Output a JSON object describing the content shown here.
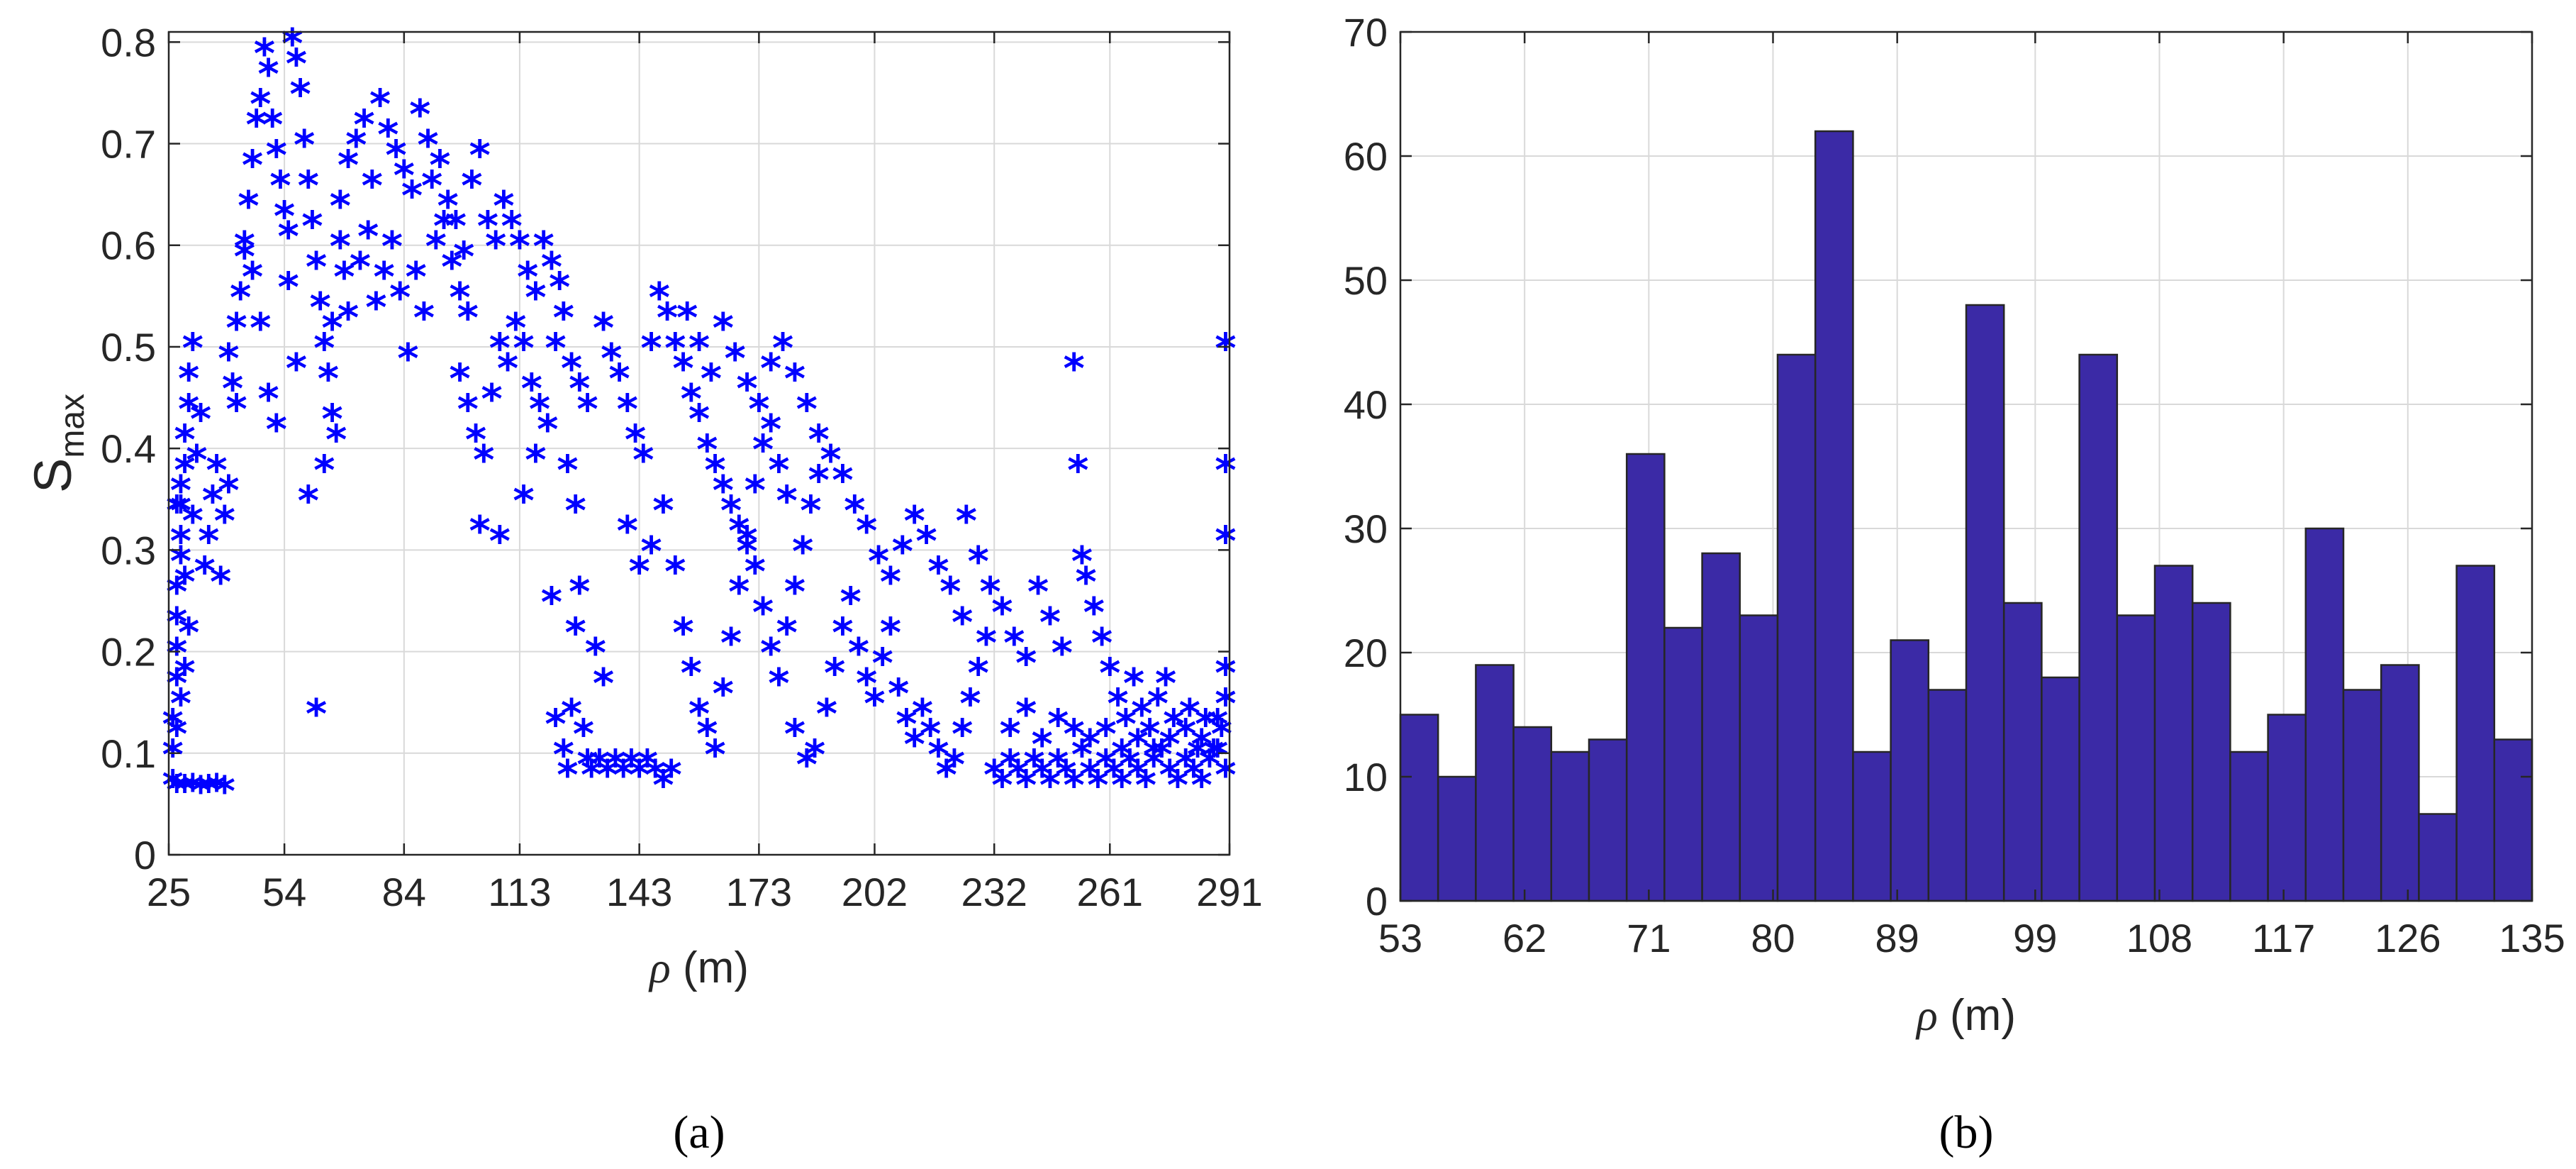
{
  "chart_data": [
    {
      "type": "scatter",
      "panel_label": "(a)",
      "xlabel_symbol": "ρ",
      "xlabel_unit": " (m)",
      "ylabel_main": "S",
      "ylabel_sub": "max",
      "xlim": [
        25,
        291
      ],
      "ylim": [
        0,
        0.81
      ],
      "x_ticks": [
        25,
        54,
        84,
        113,
        143,
        173,
        202,
        232,
        261,
        291
      ],
      "x_tick_labels": [
        "25",
        "54",
        "84",
        "113",
        "143",
        "173",
        "202",
        "232",
        "261",
        "291"
      ],
      "y_ticks": [
        0,
        0.1,
        0.2,
        0.3,
        0.4,
        0.5,
        0.6,
        0.7,
        0.8
      ],
      "y_tick_labels": [
        "0",
        "0.1",
        "0.2",
        "0.3",
        "0.4",
        "0.5",
        "0.6",
        "0.7",
        "0.8"
      ],
      "grid": true,
      "marker": "*",
      "marker_color": "#0000ff",
      "points": [
        [
          26,
          0.07
        ],
        [
          26,
          0.1
        ],
        [
          26,
          0.13
        ],
        [
          27,
          0.17
        ],
        [
          27,
          0.2
        ],
        [
          27,
          0.23
        ],
        [
          27,
          0.26
        ],
        [
          28,
          0.29
        ],
        [
          28,
          0.31
        ],
        [
          28,
          0.34
        ],
        [
          28,
          0.36
        ],
        [
          29,
          0.38
        ],
        [
          29,
          0.41
        ],
        [
          30,
          0.44
        ],
        [
          30,
          0.47
        ],
        [
          31,
          0.5
        ],
        [
          27,
          0.34
        ],
        [
          29,
          0.27
        ],
        [
          30,
          0.22
        ],
        [
          29,
          0.18
        ],
        [
          28,
          0.15
        ],
        [
          27,
          0.12
        ],
        [
          31,
          0.33
        ],
        [
          32,
          0.39
        ],
        [
          33,
          0.43
        ],
        [
          27,
          0.065
        ],
        [
          29,
          0.065
        ],
        [
          31,
          0.066
        ],
        [
          33,
          0.064
        ],
        [
          35,
          0.065
        ],
        [
          37,
          0.066
        ],
        [
          39,
          0.064
        ],
        [
          34,
          0.28
        ],
        [
          35,
          0.31
        ],
        [
          36,
          0.35
        ],
        [
          37,
          0.38
        ],
        [
          38,
          0.27
        ],
        [
          39,
          0.33
        ],
        [
          40,
          0.36
        ],
        [
          41,
          0.46
        ],
        [
          42,
          0.52
        ],
        [
          43,
          0.55
        ],
        [
          44,
          0.59
        ],
        [
          45,
          0.64
        ],
        [
          46,
          0.68
        ],
        [
          47,
          0.72
        ],
        [
          48,
          0.74
        ],
        [
          49,
          0.79
        ],
        [
          50,
          0.77
        ],
        [
          51,
          0.72
        ],
        [
          52,
          0.69
        ],
        [
          53,
          0.66
        ],
        [
          54,
          0.63
        ],
        [
          55,
          0.61
        ],
        [
          56,
          0.8
        ],
        [
          57,
          0.78
        ],
        [
          58,
          0.75
        ],
        [
          59,
          0.7
        ],
        [
          60,
          0.66
        ],
        [
          61,
          0.62
        ],
        [
          62,
          0.58
        ],
        [
          63,
          0.54
        ],
        [
          64,
          0.5
        ],
        [
          65,
          0.47
        ],
        [
          66,
          0.43
        ],
        [
          67,
          0.41
        ],
        [
          68,
          0.6
        ],
        [
          69,
          0.57
        ],
        [
          70,
          0.53
        ],
        [
          40,
          0.49
        ],
        [
          42,
          0.44
        ],
        [
          44,
          0.6
        ],
        [
          46,
          0.57
        ],
        [
          48,
          0.52
        ],
        [
          50,
          0.45
        ],
        [
          52,
          0.42
        ],
        [
          55,
          0.56
        ],
        [
          57,
          0.48
        ],
        [
          60,
          0.35
        ],
        [
          62,
          0.14
        ],
        [
          64,
          0.38
        ],
        [
          66,
          0.52
        ],
        [
          68,
          0.64
        ],
        [
          70,
          0.68
        ],
        [
          72,
          0.7
        ],
        [
          74,
          0.72
        ],
        [
          76,
          0.66
        ],
        [
          78,
          0.74
        ],
        [
          80,
          0.71
        ],
        [
          82,
          0.69
        ],
        [
          84,
          0.67
        ],
        [
          86,
          0.65
        ],
        [
          88,
          0.73
        ],
        [
          90,
          0.7
        ],
        [
          92,
          0.6
        ],
        [
          94,
          0.62
        ],
        [
          96,
          0.58
        ],
        [
          98,
          0.55
        ],
        [
          100,
          0.53
        ],
        [
          73,
          0.58
        ],
        [
          75,
          0.61
        ],
        [
          77,
          0.54
        ],
        [
          79,
          0.57
        ],
        [
          81,
          0.6
        ],
        [
          83,
          0.55
        ],
        [
          85,
          0.49
        ],
        [
          87,
          0.57
        ],
        [
          89,
          0.53
        ],
        [
          91,
          0.66
        ],
        [
          93,
          0.68
        ],
        [
          95,
          0.64
        ],
        [
          97,
          0.62
        ],
        [
          99,
          0.59
        ],
        [
          101,
          0.66
        ],
        [
          103,
          0.69
        ],
        [
          105,
          0.62
        ],
        [
          107,
          0.6
        ],
        [
          109,
          0.64
        ],
        [
          111,
          0.62
        ],
        [
          113,
          0.6
        ],
        [
          115,
          0.57
        ],
        [
          117,
          0.55
        ],
        [
          119,
          0.6
        ],
        [
          121,
          0.58
        ],
        [
          123,
          0.56
        ],
        [
          98,
          0.47
        ],
        [
          100,
          0.44
        ],
        [
          102,
          0.41
        ],
        [
          104,
          0.39
        ],
        [
          106,
          0.45
        ],
        [
          108,
          0.5
        ],
        [
          110,
          0.48
        ],
        [
          112,
          0.52
        ],
        [
          114,
          0.5
        ],
        [
          116,
          0.46
        ],
        [
          118,
          0.44
        ],
        [
          103,
          0.32
        ],
        [
          108,
          0.31
        ],
        [
          114,
          0.35
        ],
        [
          117,
          0.39
        ],
        [
          120,
          0.42
        ],
        [
          122,
          0.5
        ],
        [
          124,
          0.53
        ],
        [
          126,
          0.48
        ],
        [
          128,
          0.46
        ],
        [
          130,
          0.44
        ],
        [
          125,
          0.38
        ],
        [
          127,
          0.34
        ],
        [
          121,
          0.25
        ],
        [
          122,
          0.13
        ],
        [
          124,
          0.1
        ],
        [
          125,
          0.08
        ],
        [
          126,
          0.14
        ],
        [
          127,
          0.22
        ],
        [
          128,
          0.26
        ],
        [
          129,
          0.12
        ],
        [
          130,
          0.09
        ],
        [
          131,
          0.08
        ],
        [
          133,
          0.09
        ],
        [
          135,
          0.08
        ],
        [
          137,
          0.09
        ],
        [
          139,
          0.08
        ],
        [
          141,
          0.09
        ],
        [
          143,
          0.08
        ],
        [
          145,
          0.09
        ],
        [
          147,
          0.08
        ],
        [
          149,
          0.07
        ],
        [
          151,
          0.08
        ],
        [
          132,
          0.2
        ],
        [
          134,
          0.17
        ],
        [
          134,
          0.52
        ],
        [
          136,
          0.49
        ],
        [
          138,
          0.47
        ],
        [
          140,
          0.44
        ],
        [
          142,
          0.41
        ],
        [
          144,
          0.39
        ],
        [
          146,
          0.5
        ],
        [
          148,
          0.55
        ],
        [
          150,
          0.53
        ],
        [
          152,
          0.5
        ],
        [
          154,
          0.48
        ],
        [
          156,
          0.45
        ],
        [
          158,
          0.43
        ],
        [
          160,
          0.4
        ],
        [
          162,
          0.38
        ],
        [
          164,
          0.36
        ],
        [
          166,
          0.34
        ],
        [
          168,
          0.32
        ],
        [
          170,
          0.3
        ],
        [
          172,
          0.36
        ],
        [
          174,
          0.4
        ],
        [
          176,
          0.42
        ],
        [
          178,
          0.38
        ],
        [
          180,
          0.35
        ],
        [
          140,
          0.32
        ],
        [
          143,
          0.28
        ],
        [
          146,
          0.3
        ],
        [
          149,
          0.34
        ],
        [
          152,
          0.28
        ],
        [
          154,
          0.22
        ],
        [
          156,
          0.18
        ],
        [
          158,
          0.14
        ],
        [
          160,
          0.12
        ],
        [
          162,
          0.1
        ],
        [
          164,
          0.16
        ],
        [
          166,
          0.21
        ],
        [
          168,
          0.26
        ],
        [
          170,
          0.31
        ],
        [
          172,
          0.28
        ],
        [
          174,
          0.24
        ],
        [
          176,
          0.2
        ],
        [
          178,
          0.17
        ],
        [
          180,
          0.22
        ],
        [
          182,
          0.26
        ],
        [
          184,
          0.3
        ],
        [
          186,
          0.34
        ],
        [
          188,
          0.37
        ],
        [
          155,
          0.53
        ],
        [
          158,
          0.5
        ],
        [
          161,
          0.47
        ],
        [
          164,
          0.52
        ],
        [
          167,
          0.49
        ],
        [
          170,
          0.46
        ],
        [
          173,
          0.44
        ],
        [
          176,
          0.48
        ],
        [
          179,
          0.5
        ],
        [
          182,
          0.47
        ],
        [
          185,
          0.44
        ],
        [
          188,
          0.41
        ],
        [
          191,
          0.39
        ],
        [
          194,
          0.37
        ],
        [
          197,
          0.34
        ],
        [
          200,
          0.32
        ],
        [
          203,
          0.29
        ],
        [
          206,
          0.27
        ],
        [
          209,
          0.3
        ],
        [
          212,
          0.33
        ],
        [
          215,
          0.31
        ],
        [
          218,
          0.28
        ],
        [
          221,
          0.26
        ],
        [
          224,
          0.23
        ],
        [
          182,
          0.12
        ],
        [
          185,
          0.09
        ],
        [
          187,
          0.1
        ],
        [
          190,
          0.14
        ],
        [
          192,
          0.18
        ],
        [
          194,
          0.22
        ],
        [
          196,
          0.25
        ],
        [
          198,
          0.2
        ],
        [
          200,
          0.17
        ],
        [
          202,
          0.15
        ],
        [
          204,
          0.19
        ],
        [
          206,
          0.22
        ],
        [
          208,
          0.16
        ],
        [
          210,
          0.13
        ],
        [
          212,
          0.11
        ],
        [
          214,
          0.14
        ],
        [
          216,
          0.12
        ],
        [
          218,
          0.1
        ],
        [
          220,
          0.08
        ],
        [
          222,
          0.09
        ],
        [
          224,
          0.12
        ],
        [
          226,
          0.15
        ],
        [
          228,
          0.18
        ],
        [
          230,
          0.21
        ],
        [
          225,
          0.33
        ],
        [
          228,
          0.29
        ],
        [
          231,
          0.26
        ],
        [
          234,
          0.24
        ],
        [
          237,
          0.21
        ],
        [
          240,
          0.19
        ],
        [
          243,
          0.26
        ],
        [
          246,
          0.23
        ],
        [
          249,
          0.2
        ],
        [
          252,
          0.48
        ],
        [
          253,
          0.38
        ],
        [
          254,
          0.29
        ],
        [
          255,
          0.27
        ],
        [
          257,
          0.24
        ],
        [
          259,
          0.21
        ],
        [
          261,
          0.18
        ],
        [
          263,
          0.15
        ],
        [
          265,
          0.13
        ],
        [
          267,
          0.17
        ],
        [
          269,
          0.14
        ],
        [
          271,
          0.12
        ],
        [
          273,
          0.15
        ],
        [
          275,
          0.17
        ],
        [
          277,
          0.13
        ],
        [
          232,
          0.08
        ],
        [
          234,
          0.07
        ],
        [
          236,
          0.09
        ],
        [
          238,
          0.08
        ],
        [
          240,
          0.07
        ],
        [
          242,
          0.09
        ],
        [
          244,
          0.08
        ],
        [
          246,
          0.07
        ],
        [
          248,
          0.09
        ],
        [
          250,
          0.08
        ],
        [
          252,
          0.07
        ],
        [
          254,
          0.1
        ],
        [
          256,
          0.08
        ],
        [
          258,
          0.07
        ],
        [
          260,
          0.09
        ],
        [
          262,
          0.08
        ],
        [
          264,
          0.07
        ],
        [
          266,
          0.09
        ],
        [
          268,
          0.08
        ],
        [
          270,
          0.07
        ],
        [
          272,
          0.09
        ],
        [
          274,
          0.1
        ],
        [
          276,
          0.08
        ],
        [
          278,
          0.07
        ],
        [
          280,
          0.09
        ],
        [
          282,
          0.08
        ],
        [
          284,
          0.07
        ],
        [
          286,
          0.09
        ],
        [
          288,
          0.1
        ],
        [
          290,
          0.08
        ],
        [
          236,
          0.12
        ],
        [
          240,
          0.14
        ],
        [
          244,
          0.11
        ],
        [
          248,
          0.13
        ],
        [
          252,
          0.12
        ],
        [
          256,
          0.11
        ],
        [
          260,
          0.12
        ],
        [
          264,
          0.1
        ],
        [
          268,
          0.11
        ],
        [
          272,
          0.1
        ],
        [
          276,
          0.11
        ],
        [
          280,
          0.12
        ],
        [
          284,
          0.11
        ],
        [
          288,
          0.13
        ],
        [
          290,
          0.15
        ],
        [
          290,
          0.18
        ],
        [
          290,
          0.31
        ],
        [
          290,
          0.38
        ],
        [
          290,
          0.5
        ],
        [
          289,
          0.12
        ],
        [
          287,
          0.1
        ],
        [
          285,
          0.13
        ],
        [
          283,
          0.1
        ],
        [
          281,
          0.14
        ]
      ]
    },
    {
      "type": "bar",
      "panel_label": "(b)",
      "xlabel_symbol": "ρ",
      "xlabel_unit": " (m)",
      "xlim": [
        53,
        135
      ],
      "ylim": [
        0,
        70
      ],
      "x_ticks": [
        53,
        62,
        71,
        80,
        89,
        99,
        108,
        117,
        126,
        135
      ],
      "x_tick_labels": [
        "53",
        "62",
        "71",
        "80",
        "89",
        "99",
        "108",
        "117",
        "126",
        "135"
      ],
      "y_ticks": [
        0,
        10,
        20,
        30,
        40,
        50,
        60,
        70
      ],
      "y_tick_labels": [
        "0",
        "10",
        "20",
        "30",
        "40",
        "50",
        "60",
        "70"
      ],
      "grid": true,
      "bar_color": "#3b2aa6",
      "bar_edge_color": "#262626",
      "values": [
        15,
        10,
        19,
        14,
        12,
        13,
        36,
        22,
        28,
        23,
        44,
        62,
        12,
        21,
        17,
        48,
        24,
        18,
        44,
        23,
        27,
        24,
        12,
        15,
        30,
        17,
        19,
        7,
        27,
        13
      ]
    }
  ]
}
